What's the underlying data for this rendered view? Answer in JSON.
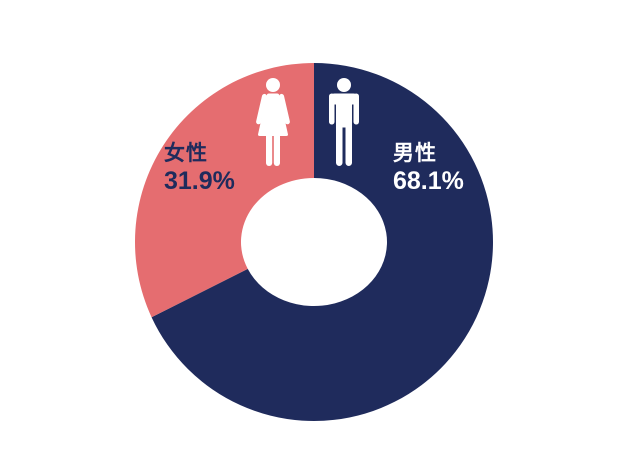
{
  "chart_data": {
    "type": "donut",
    "title": "",
    "unit": "%",
    "start_angle_deg": 0,
    "direction": "clockwise",
    "legend_position": "on-chart",
    "background": "#FFFFFF",
    "icon_color": "#FFFFFF",
    "segments": [
      {
        "id": "male",
        "label": "男性",
        "value": 68.1,
        "value_display": "68.1%",
        "color": "#1F2B5C",
        "text_color": "#FFFFFF",
        "icon": "male-icon"
      },
      {
        "id": "female",
        "label": "女性",
        "value": 31.9,
        "value_display": "31.9%",
        "color": "#E56D70",
        "text_color": "#1F2B5C",
        "icon": "female-icon"
      }
    ]
  }
}
